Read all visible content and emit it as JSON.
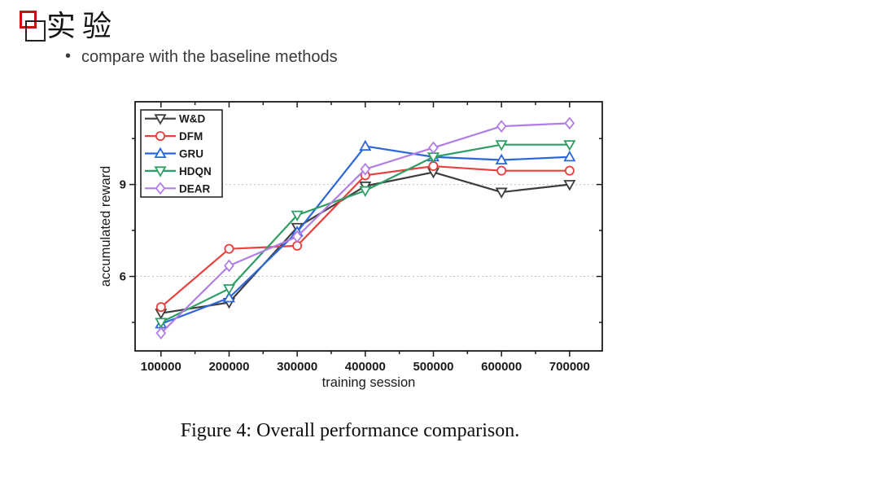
{
  "slide": {
    "title": "实验",
    "bullet": "compare with the baseline methods",
    "caption": "Figure 4: Overall performance comparison."
  },
  "chart_data": {
    "type": "line",
    "title": "",
    "xlabel": "training session",
    "ylabel": "accumulated reward",
    "x": [
      100000,
      200000,
      300000,
      400000,
      500000,
      600000,
      700000
    ],
    "x_tick_labels": [
      "100000",
      "200000",
      "300000",
      "400000",
      "500000",
      "600000",
      "700000"
    ],
    "x_ticks_minor": [
      150000,
      250000,
      350000,
      450000,
      550000,
      650000
    ],
    "y_ticks_major": [
      6,
      9
    ],
    "y_ticks_minor": [
      4.5,
      7.5,
      10.5
    ],
    "xlim": [
      62000,
      748000
    ],
    "ylim": [
      3.57,
      11.7
    ],
    "grid": "horizontal dotted lines at major y ticks",
    "legend_position": "top-left",
    "marker_fill": "#ffffff",
    "frame_color": "#1a1a1a",
    "grid_color": "#bfbfbf",
    "series": [
      {
        "name": "W&D",
        "color": "#3d3d3d",
        "marker": "triangle-down",
        "values": [
          4.8,
          5.15,
          7.6,
          8.95,
          9.4,
          8.75,
          9.0
        ]
      },
      {
        "name": "DFM",
        "color": "#e8403c",
        "marker": "circle",
        "values": [
          5.0,
          6.9,
          7.0,
          9.3,
          9.6,
          9.45,
          9.45
        ]
      },
      {
        "name": "GRU",
        "color": "#2b67d9",
        "marker": "triangle-up",
        "values": [
          4.45,
          5.3,
          7.45,
          10.25,
          9.9,
          9.8,
          9.9
        ]
      },
      {
        "name": "HDQN",
        "color": "#2f9e64",
        "marker": "triangle-down",
        "values": [
          4.5,
          5.6,
          8.0,
          8.8,
          9.9,
          10.3,
          10.3
        ]
      },
      {
        "name": "DEAR",
        "color": "#b27de5",
        "marker": "diamond",
        "values": [
          4.15,
          6.35,
          7.3,
          9.5,
          10.2,
          10.9,
          11.0
        ]
      }
    ]
  }
}
